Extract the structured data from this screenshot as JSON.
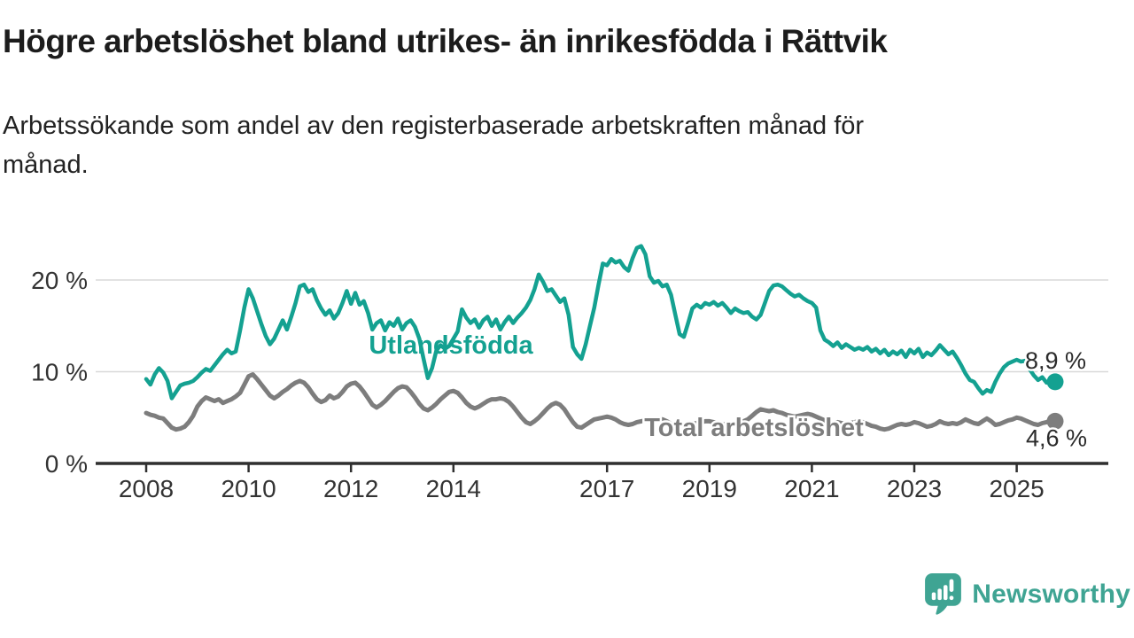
{
  "header": {
    "title": "Högre arbetslöshet bland utrikes- än inrikesfödda i Rättvik",
    "subtitle_line1": "Arbetssökande som andel av den registerbaserade arbetskraften månad för",
    "subtitle_line2": "månad."
  },
  "branding": {
    "name": "Newsworthy",
    "color": "#3fa493",
    "icon": "newsworthy-bubble-bar-chart-icon"
  },
  "chart_data": {
    "type": "line",
    "unit": "%",
    "x_interval": "monthly",
    "x_start_year": 2008,
    "x_end_label": "2025 (oktober)",
    "x_ticks": [
      2008,
      2010,
      2012,
      2014,
      2017,
      2019,
      2021,
      2023,
      2025
    ],
    "y_axis": {
      "ticks": [
        {
          "value": 0,
          "label": "0 %"
        },
        {
          "value": 10,
          "label": "10 %"
        },
        {
          "value": 20,
          "label": "20 %"
        }
      ]
    },
    "ylim": [
      0,
      24
    ],
    "grid": "horizontal",
    "grid_color": "#d9d9d9",
    "axis_color": "#333333",
    "series": [
      {
        "name": "Utlandsfödda",
        "color": "#14a191",
        "end_label": "8,9 %",
        "end_value": 8.9,
        "values": [
          9.2,
          8.6,
          9.7,
          10.4,
          9.9,
          9.0,
          7.1,
          7.8,
          8.5,
          8.7,
          8.8,
          9.0,
          9.4,
          9.9,
          10.3,
          10.1,
          10.7,
          11.3,
          11.9,
          12.4,
          12.0,
          12.2,
          14.5,
          17.0,
          19.0,
          18.0,
          16.6,
          15.2,
          13.9,
          13.0,
          13.6,
          14.6,
          15.6,
          14.6,
          16.0,
          17.5,
          19.3,
          19.5,
          18.7,
          19.0,
          17.8,
          16.9,
          16.2,
          16.7,
          15.8,
          16.4,
          17.5,
          18.8,
          17.4,
          18.6,
          17.3,
          17.7,
          16.4,
          14.6,
          15.3,
          15.6,
          14.5,
          15.4,
          15.0,
          15.8,
          14.6,
          15.3,
          15.6,
          14.9,
          13.6,
          11.4,
          9.3,
          10.4,
          12.3,
          12.9,
          12.5,
          12.8,
          13.6,
          14.4,
          16.8,
          15.9,
          15.3,
          15.7,
          14.8,
          15.6,
          16.0,
          15.0,
          15.7,
          14.6,
          15.4,
          16.0,
          15.3,
          15.9,
          16.4,
          17.0,
          17.8,
          19.0,
          20.6,
          19.8,
          18.8,
          19.0,
          18.3,
          17.6,
          18.0,
          16.2,
          12.7,
          11.9,
          11.4,
          13.0,
          15.0,
          17.0,
          19.5,
          21.8,
          21.6,
          22.3,
          21.9,
          22.1,
          21.4,
          21.0,
          22.4,
          23.5,
          23.7,
          22.8,
          20.4,
          19.7,
          19.9,
          19.3,
          19.5,
          18.4,
          16.2,
          14.1,
          13.8,
          15.3,
          16.9,
          17.3,
          17.0,
          17.5,
          17.3,
          17.6,
          17.2,
          17.5,
          17.0,
          16.4,
          16.9,
          16.6,
          16.4,
          16.5,
          16.0,
          15.7,
          16.2,
          17.5,
          18.8,
          19.4,
          19.5,
          19.3,
          18.9,
          18.5,
          18.2,
          18.4,
          18.0,
          17.7,
          17.5,
          17.0,
          14.5,
          13.5,
          13.2,
          12.8,
          13.2,
          12.6,
          13.0,
          12.7,
          12.4,
          12.6,
          12.4,
          12.7,
          12.2,
          12.5,
          12.0,
          12.4,
          11.8,
          12.2,
          11.9,
          12.3,
          11.6,
          12.4,
          12.0,
          12.5,
          11.6,
          12.1,
          11.8,
          12.3,
          12.9,
          12.4,
          11.9,
          12.2,
          11.5,
          10.7,
          9.8,
          9.1,
          8.9,
          8.2,
          7.6,
          8.0,
          7.8,
          8.9,
          9.8,
          10.5,
          10.9,
          11.1,
          11.3,
          11.1,
          11.2,
          10.3,
          9.6,
          9.1,
          9.4,
          8.8,
          9.2,
          8.9
        ]
      },
      {
        "name": "Total arbetslöshet",
        "color": "#7d7d7d",
        "end_label": "4,6 %",
        "end_value": 4.6,
        "values": [
          5.5,
          5.3,
          5.2,
          5.0,
          4.9,
          4.4,
          3.9,
          3.7,
          3.8,
          4.0,
          4.5,
          5.2,
          6.2,
          6.8,
          7.2,
          7.0,
          6.8,
          7.0,
          6.6,
          6.8,
          7.0,
          7.3,
          7.7,
          8.6,
          9.5,
          9.7,
          9.2,
          8.6,
          8.0,
          7.4,
          7.1,
          7.4,
          7.8,
          8.1,
          8.5,
          8.8,
          9.0,
          8.8,
          8.3,
          7.6,
          7.0,
          6.7,
          6.9,
          7.4,
          7.1,
          7.3,
          7.8,
          8.4,
          8.7,
          8.8,
          8.4,
          7.8,
          7.1,
          6.4,
          6.1,
          6.4,
          6.8,
          7.3,
          7.8,
          8.2,
          8.4,
          8.3,
          7.8,
          7.2,
          6.5,
          6.0,
          5.8,
          6.1,
          6.5,
          7.0,
          7.4,
          7.8,
          7.9,
          7.7,
          7.2,
          6.6,
          6.2,
          6.0,
          6.2,
          6.5,
          6.8,
          7.0,
          7.0,
          7.1,
          7.0,
          6.7,
          6.2,
          5.6,
          5.0,
          4.5,
          4.3,
          4.6,
          5.0,
          5.5,
          6.0,
          6.4,
          6.6,
          6.4,
          5.9,
          5.2,
          4.5,
          4.0,
          3.9,
          4.2,
          4.5,
          4.8,
          4.9,
          5.0,
          5.1,
          5.0,
          4.8,
          4.5,
          4.3,
          4.2,
          4.3,
          4.5,
          4.6,
          4.7,
          4.8,
          4.9,
          4.9,
          4.8,
          4.6,
          4.3,
          4.1,
          4.0,
          4.1,
          4.2,
          4.3,
          4.4,
          4.5,
          4.6,
          4.6,
          4.5,
          4.4,
          4.3,
          4.2,
          4.3,
          4.4,
          4.5,
          4.6,
          4.8,
          5.2,
          5.6,
          5.9,
          5.8,
          5.7,
          5.8,
          5.6,
          5.5,
          5.3,
          5.2,
          5.1,
          5.2,
          5.3,
          5.4,
          5.3,
          5.1,
          4.9,
          4.7,
          4.5,
          4.4,
          4.5,
          4.4,
          4.3,
          4.4,
          4.5,
          4.6,
          4.5,
          4.3,
          4.1,
          4.0,
          3.8,
          3.7,
          3.8,
          4.0,
          4.2,
          4.3,
          4.2,
          4.3,
          4.5,
          4.4,
          4.2,
          4.0,
          4.1,
          4.3,
          4.6,
          4.4,
          4.3,
          4.4,
          4.3,
          4.5,
          4.8,
          4.6,
          4.4,
          4.3,
          4.6,
          4.9,
          4.6,
          4.2,
          4.3,
          4.5,
          4.7,
          4.8,
          5.0,
          4.9,
          4.7,
          4.5,
          4.3,
          4.2,
          4.4,
          4.5,
          4.7,
          4.6
        ]
      }
    ]
  }
}
